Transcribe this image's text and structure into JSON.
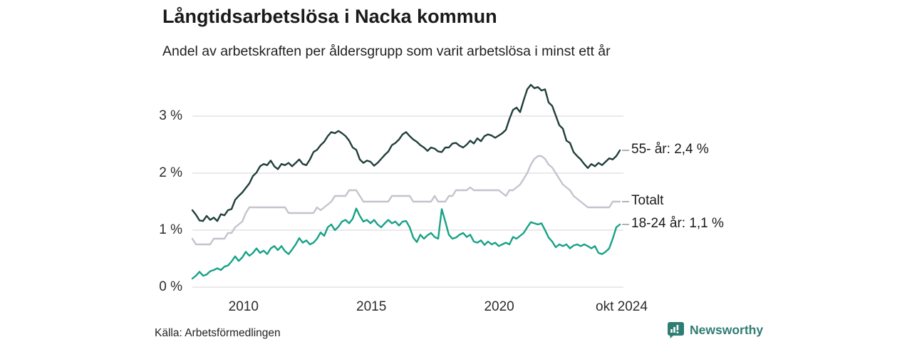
{
  "header": {
    "title": "Långtidsarbetslösa i Nacka kommun",
    "subtitle": "Andel av arbetskraften per åldersgrupp som varit arbetslösa i minst ett år"
  },
  "footer": {
    "source": "Källa: Arbetsförmedlingen",
    "brand": "Newsworthy",
    "brand_color": "#2e7d73"
  },
  "chart_data": {
    "type": "line",
    "title": "Långtidsarbetslösa i Nacka kommun",
    "subtitle": "Andel av arbetskraften per åldersgrupp som varit arbetslösa i minst ett år",
    "xlabel": "",
    "ylabel": "",
    "x_range_years": [
      2008.0,
      2024.72
    ],
    "sampling": "uniform, ca 2 månader mellan punkter, jan 2008 – okt 2024",
    "ylim": [
      0,
      3.6
    ],
    "grid": true,
    "legend_position": "right-end-labels",
    "colors": {
      "grid": "#dedede",
      "connector": "#999999",
      "tick_text": "#2b2b2b",
      "label_text": "#1a1a1a"
    },
    "y_ticks": [
      {
        "label": "0 %",
        "v": 0
      },
      {
        "label": "1 %",
        "v": 1
      },
      {
        "label": "2 %",
        "v": 2
      },
      {
        "label": "3 %",
        "v": 3
      }
    ],
    "x_ticks": [
      {
        "label": "2010",
        "t": 2010
      },
      {
        "label": "2015",
        "t": 2015
      },
      {
        "label": "2020",
        "t": 2020
      },
      {
        "label": "okt 2024",
        "t": 2024.79
      }
    ],
    "series": [
      {
        "name": "55- år",
        "end_label": "55- år: 2,4 %",
        "end_value": 2.4,
        "color": "#203f3b",
        "values": [
          1.35,
          1.27,
          1.17,
          1.16,
          1.25,
          1.18,
          1.22,
          1.16,
          1.28,
          1.26,
          1.35,
          1.37,
          1.53,
          1.6,
          1.66,
          1.74,
          1.82,
          1.95,
          2.01,
          2.12,
          2.16,
          2.14,
          2.22,
          2.12,
          2.07,
          2.16,
          2.14,
          2.18,
          2.12,
          2.18,
          2.24,
          2.16,
          2.14,
          2.24,
          2.37,
          2.41,
          2.49,
          2.55,
          2.65,
          2.72,
          2.7,
          2.74,
          2.7,
          2.65,
          2.57,
          2.45,
          2.41,
          2.24,
          2.18,
          2.22,
          2.2,
          2.13,
          2.18,
          2.25,
          2.32,
          2.38,
          2.49,
          2.53,
          2.59,
          2.68,
          2.72,
          2.65,
          2.59,
          2.55,
          2.49,
          2.45,
          2.39,
          2.45,
          2.43,
          2.38,
          2.37,
          2.45,
          2.45,
          2.52,
          2.53,
          2.48,
          2.45,
          2.5,
          2.57,
          2.52,
          2.61,
          2.56,
          2.65,
          2.68,
          2.66,
          2.62,
          2.66,
          2.7,
          2.76,
          2.95,
          3.11,
          3.15,
          3.07,
          3.28,
          3.47,
          3.55,
          3.49,
          3.51,
          3.45,
          3.47,
          3.24,
          3.18,
          3.01,
          2.84,
          2.78,
          2.57,
          2.53,
          2.37,
          2.3,
          2.24,
          2.16,
          2.09,
          2.16,
          2.12,
          2.18,
          2.14,
          2.2,
          2.26,
          2.24,
          2.3,
          2.4
        ]
      },
      {
        "name": "Totalt",
        "end_label": "Totalt",
        "end_value": 1.5,
        "color": "#c4c3cd",
        "values": [
          0.85,
          0.75,
          0.75,
          0.75,
          0.75,
          0.75,
          0.85,
          0.85,
          0.85,
          0.85,
          0.95,
          0.95,
          1.05,
          1.1,
          1.15,
          1.3,
          1.4,
          1.4,
          1.4,
          1.4,
          1.4,
          1.4,
          1.4,
          1.4,
          1.4,
          1.4,
          1.4,
          1.3,
          1.3,
          1.3,
          1.3,
          1.3,
          1.3,
          1.3,
          1.3,
          1.4,
          1.35,
          1.4,
          1.45,
          1.5,
          1.6,
          1.6,
          1.6,
          1.6,
          1.7,
          1.7,
          1.7,
          1.6,
          1.5,
          1.5,
          1.5,
          1.5,
          1.5,
          1.5,
          1.5,
          1.5,
          1.6,
          1.6,
          1.6,
          1.6,
          1.6,
          1.6,
          1.5,
          1.5,
          1.5,
          1.5,
          1.5,
          1.5,
          1.6,
          1.5,
          1.5,
          1.5,
          1.6,
          1.6,
          1.7,
          1.7,
          1.7,
          1.7,
          1.75,
          1.7,
          1.7,
          1.7,
          1.7,
          1.7,
          1.7,
          1.7,
          1.7,
          1.65,
          1.6,
          1.7,
          1.7,
          1.75,
          1.8,
          1.9,
          2.0,
          2.15,
          2.25,
          2.3,
          2.3,
          2.25,
          2.15,
          2.1,
          2.0,
          1.9,
          1.8,
          1.75,
          1.7,
          1.6,
          1.55,
          1.5,
          1.45,
          1.4,
          1.4,
          1.4,
          1.4,
          1.4,
          1.4,
          1.4,
          1.5,
          1.5,
          1.5
        ]
      },
      {
        "name": "18-24 år",
        "end_label": "18-24 år: 1,1 %",
        "end_value": 1.1,
        "color": "#16a187",
        "values": [
          0.15,
          0.2,
          0.27,
          0.2,
          0.22,
          0.28,
          0.3,
          0.33,
          0.3,
          0.36,
          0.38,
          0.45,
          0.54,
          0.46,
          0.52,
          0.62,
          0.55,
          0.6,
          0.68,
          0.6,
          0.64,
          0.58,
          0.68,
          0.72,
          0.65,
          0.72,
          0.63,
          0.58,
          0.66,
          0.75,
          0.86,
          0.78,
          0.82,
          0.75,
          0.78,
          0.85,
          0.96,
          0.9,
          1.05,
          1.1,
          1.0,
          1.06,
          1.15,
          1.18,
          1.12,
          1.2,
          1.38,
          1.25,
          1.15,
          1.18,
          1.12,
          1.18,
          1.1,
          1.05,
          1.12,
          1.18,
          1.12,
          1.15,
          1.08,
          1.15,
          1.16,
          1.05,
          0.87,
          0.79,
          0.92,
          0.85,
          0.91,
          0.95,
          0.88,
          0.85,
          1.37,
          1.15,
          0.92,
          0.85,
          0.87,
          0.92,
          0.95,
          0.88,
          0.92,
          0.8,
          0.78,
          0.82,
          0.74,
          0.8,
          0.75,
          0.78,
          0.72,
          0.75,
          0.78,
          0.75,
          0.88,
          0.85,
          0.9,
          0.95,
          1.05,
          1.14,
          1.12,
          1.1,
          1.12,
          1.0,
          0.87,
          0.8,
          0.7,
          0.75,
          0.72,
          0.75,
          0.68,
          0.73,
          0.75,
          0.72,
          0.75,
          0.72,
          0.68,
          0.72,
          0.6,
          0.58,
          0.62,
          0.68,
          0.85,
          1.05,
          1.1
        ]
      }
    ]
  }
}
